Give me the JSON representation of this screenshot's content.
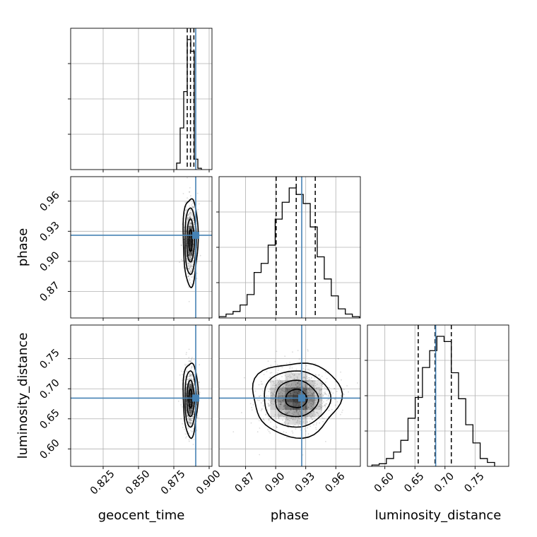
{
  "chart_data": {
    "type": "corner",
    "parameters": [
      "geocent_time",
      "phase",
      "luminosity_distance"
    ],
    "ranges": {
      "geocent_time": [
        0.802,
        0.902
      ],
      "phase": [
        0.8435,
        0.9845
      ],
      "luminosity_distance": [
        0.571,
        0.806
      ]
    },
    "ticks": {
      "geocent_time": [
        0.825,
        0.85,
        0.875,
        0.9
      ],
      "phase": [
        0.87,
        0.9,
        0.93,
        0.96
      ],
      "luminosity_distance": [
        0.6,
        0.65,
        0.7,
        0.75
      ]
    },
    "tick_labels": {
      "geocent_time": [
        "0.825",
        "0.850",
        "0.875",
        "0.900"
      ],
      "phase": [
        "0.87",
        "0.90",
        "0.93",
        "0.96"
      ],
      "luminosity_distance": [
        "0.60",
        "0.65",
        "0.70",
        "0.75"
      ]
    },
    "truths": {
      "geocent_time": 0.8905,
      "phase": 0.926,
      "luminosity_distance": 0.6845
    },
    "quantiles": {
      "geocent_time": [
        0.8845,
        0.8868,
        0.8892
      ],
      "phase": [
        0.9005,
        0.9205,
        0.9395
      ],
      "luminosity_distance": [
        0.6555,
        0.6835,
        0.7105
      ]
    },
    "histograms": {
      "geocent_time": {
        "edges": [
          0.877,
          0.8795,
          0.882,
          0.8845,
          0.887,
          0.8895,
          0.892,
          0.8945
        ],
        "counts": [
          0.05,
          0.32,
          0.6,
          1.0,
          0.91,
          0.08,
          0.01
        ]
      },
      "phase": {
        "edges": [
          0.8435,
          0.8505,
          0.8575,
          0.8645,
          0.8715,
          0.8785,
          0.8855,
          0.8925,
          0.8995,
          0.9065,
          0.9135,
          0.9205,
          0.9275,
          0.9345,
          0.9415,
          0.9485,
          0.9555,
          0.9625,
          0.9695,
          0.9765,
          0.9835
        ],
        "counts": [
          0.01,
          0.03,
          0.05,
          0.1,
          0.18,
          0.35,
          0.42,
          0.56,
          0.76,
          0.89,
          1.0,
          0.95,
          0.88,
          0.7,
          0.47,
          0.3,
          0.17,
          0.07,
          0.03,
          0.01
        ]
      },
      "luminosity_distance": {
        "edges": [
          0.5785,
          0.5905,
          0.6025,
          0.6145,
          0.6265,
          0.6385,
          0.6505,
          0.6625,
          0.6745,
          0.6865,
          0.6985,
          0.7105,
          0.7225,
          0.7345,
          0.7465,
          0.7585,
          0.7705,
          0.7825
        ],
        "counts": [
          0.01,
          0.02,
          0.06,
          0.11,
          0.2,
          0.37,
          0.53,
          0.76,
          0.89,
          1.0,
          0.96,
          0.72,
          0.52,
          0.32,
          0.18,
          0.06,
          0.03
        ]
      }
    },
    "grid": true,
    "truth_color": "#4682b4",
    "quantile_style": "dashed black"
  }
}
